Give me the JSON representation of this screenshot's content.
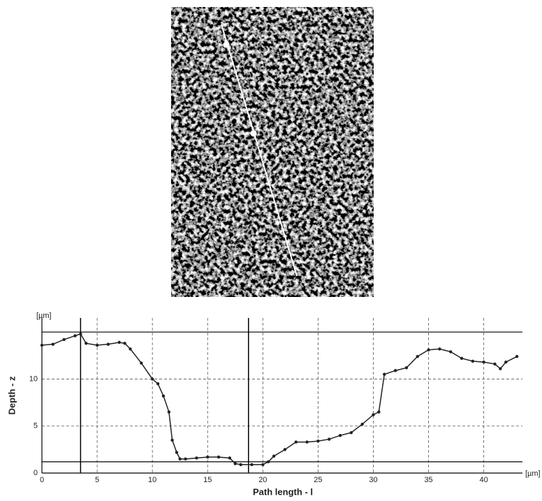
{
  "chart_data": {
    "type": "line",
    "x_label": "Path length - l",
    "y_label": "Depth - z",
    "x_unit": "[µm]",
    "y_unit": "[µm]",
    "x": [
      0,
      1,
      2,
      3,
      3.5,
      4,
      5,
      6,
      7,
      7.5,
      8,
      9,
      10,
      10.5,
      11,
      11.5,
      11.8,
      12.2,
      12.5,
      13,
      14,
      15,
      16,
      17,
      17.5,
      18,
      19,
      20,
      20.5,
      21,
      22,
      23,
      24,
      25,
      26,
      27,
      28,
      29,
      30,
      30.5,
      31,
      32,
      33,
      34,
      35,
      36,
      37,
      38,
      39,
      40,
      41,
      41.5,
      42,
      43
    ],
    "series": [
      {
        "color": "#222222",
        "values": [
          13.6,
          13.7,
          14.2,
          14.6,
          14.8,
          13.8,
          13.6,
          13.7,
          13.9,
          13.8,
          13.2,
          11.7,
          10.0,
          9.5,
          8.2,
          6.5,
          3.5,
          2.2,
          1.5,
          1.5,
          1.6,
          1.7,
          1.7,
          1.6,
          1.0,
          0.9,
          0.9,
          0.9,
          1.2,
          1.8,
          2.5,
          3.3,
          3.3,
          3.4,
          3.6,
          4.0,
          4.3,
          5.2,
          6.2,
          6.5,
          10.5,
          10.9,
          11.2,
          12.4,
          13.1,
          13.2,
          12.9,
          12.2,
          11.9,
          11.8,
          11.6,
          11.1,
          11.8,
          12.4
        ]
      }
    ],
    "xlim": [
      0,
      43.5
    ],
    "ylim": [
      0,
      16.5
    ],
    "xticks": [
      0,
      5,
      10,
      15,
      20,
      25,
      30,
      35,
      40
    ],
    "yticks": [
      0,
      5,
      10
    ],
    "grid": true,
    "cursor_x": [
      3.5,
      18.7
    ],
    "cursor_y": [
      15.0,
      1.2
    ]
  }
}
